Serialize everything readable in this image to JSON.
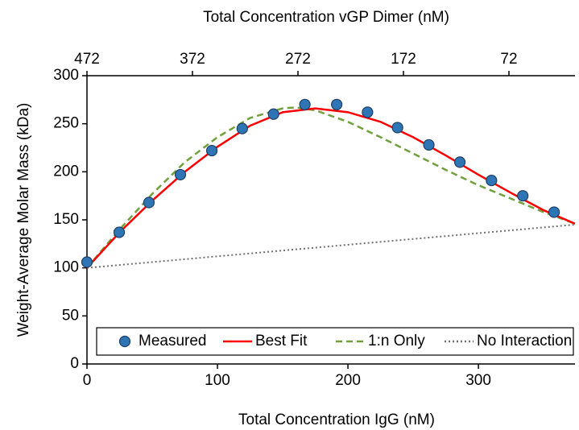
{
  "chart_data": {
    "type": "scatter-line",
    "xlabel": "Total Concentration IgG (nM)",
    "ylabel": "Weight-Average Molar Mass (kDa)",
    "x2label": "Total Concentration vGP Dimer (nM)",
    "xlim": [
      0,
      374
    ],
    "xticks": [
      0,
      100,
      200,
      300
    ],
    "x2lim": [
      472,
      9.4
    ],
    "x2ticks": [
      472,
      372,
      272,
      172,
      72
    ],
    "ylim": [
      0,
      300
    ],
    "yticks": [
      0,
      50,
      100,
      150,
      200,
      250,
      300
    ],
    "legend": "bottom",
    "series": [
      {
        "name": "Measured",
        "style": "marker",
        "color": "#2e75b6",
        "x": [
          0,
          24.7,
          47.5,
          71.6,
          95.7,
          119,
          143,
          167,
          191.4,
          215,
          238,
          262,
          285.8,
          310,
          334,
          358
        ],
        "values": [
          106,
          137,
          168,
          197,
          222,
          245,
          260,
          270,
          270,
          262,
          246,
          228,
          210,
          191,
          175,
          158
        ]
      },
      {
        "name": "Best Fit",
        "style": "solid",
        "color": "#ff0000",
        "x": [
          0,
          25,
          50,
          75,
          100,
          125,
          150,
          175,
          200,
          225,
          250,
          275,
          300,
          325,
          350,
          374
        ],
        "values": [
          100,
          137,
          170,
          200,
          226,
          248,
          262,
          266,
          262,
          252,
          236,
          217,
          197,
          178,
          160,
          146
        ]
      },
      {
        "name": "1:n Only",
        "style": "dashed",
        "color": "#70a03c",
        "x": [
          0,
          25,
          50,
          75,
          100,
          125,
          150,
          160,
          175,
          200,
          225,
          250,
          275,
          300,
          325,
          350,
          374
        ],
        "values": [
          100,
          140,
          177,
          210,
          236,
          256,
          266,
          267,
          264,
          252,
          236,
          219,
          202,
          186,
          172,
          158,
          146
        ]
      },
      {
        "name": "No Interaction",
        "style": "dotted",
        "color": "#707070",
        "x": [
          0,
          374
        ],
        "values": [
          100,
          145
        ]
      }
    ]
  }
}
